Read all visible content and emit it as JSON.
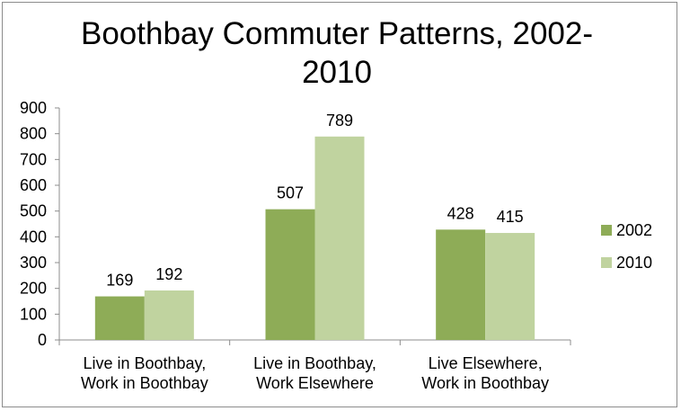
{
  "chart_data": {
    "type": "bar",
    "title": "Boothbay Commuter Patterns, 2002-2010",
    "title_lines": [
      "Boothbay Commuter Patterns, 2002-",
      "2010"
    ],
    "categories": [
      [
        "Live in Boothbay,",
        "Work in Boothbay"
      ],
      [
        "Live in Boothbay,",
        "Work Elsewhere"
      ],
      [
        "Live Elsewhere,",
        "Work in Boothbay"
      ]
    ],
    "series": [
      {
        "name": "2002",
        "values": [
          169,
          507,
          428
        ],
        "color": "#8eac57"
      },
      {
        "name": "2010",
        "values": [
          192,
          789,
          415
        ],
        "color": "#c0d39f"
      }
    ],
    "ylim": [
      0,
      900
    ],
    "yticks": [
      0,
      100,
      200,
      300,
      400,
      500,
      600,
      700,
      800,
      900
    ],
    "xlabel": "",
    "ylabel": "",
    "grid": false,
    "legend_position": "right",
    "data_labels": true
  }
}
